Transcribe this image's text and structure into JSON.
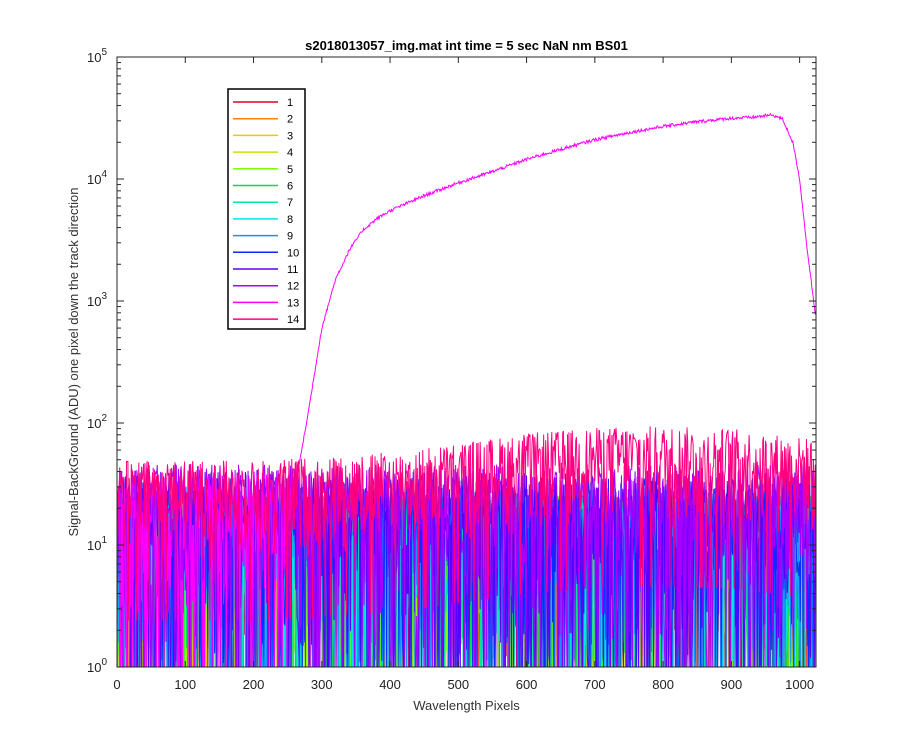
{
  "chart_data": {
    "type": "line",
    "title": "s2018013057_img.mat int time = 5 sec  NaN nm BS01",
    "xlabel": "Wavelength Pixels",
    "ylabel": "Signal-BackGround (ADU) one pixel down the track direction",
    "xlim": [
      0,
      1024
    ],
    "ylim": [
      1,
      100000
    ],
    "yscale": "log",
    "grid": false,
    "legend_position": "top-left",
    "x_ticks": [
      "0",
      "100",
      "200",
      "300",
      "400",
      "500",
      "600",
      "700",
      "800",
      "900",
      "1000"
    ],
    "y_ticks": [
      {
        "base": "10",
        "exp": "0"
      },
      {
        "base": "10",
        "exp": "1"
      },
      {
        "base": "10",
        "exp": "2"
      },
      {
        "base": "10",
        "exp": "3"
      },
      {
        "base": "10",
        "exp": "4"
      },
      {
        "base": "10",
        "exp": "5"
      }
    ],
    "series": [
      {
        "name": "1",
        "color": "#e8001a",
        "baseline": 10
      },
      {
        "name": "2",
        "color": "#ff7f0e",
        "baseline": 10
      },
      {
        "name": "3",
        "color": "#f5c400",
        "baseline": 10
      },
      {
        "name": "4",
        "color": "#c8e000",
        "baseline": 10
      },
      {
        "name": "5",
        "color": "#7cff00",
        "baseline": 10
      },
      {
        "name": "6",
        "color": "#00e040",
        "baseline": 10
      },
      {
        "name": "7",
        "color": "#00e8a0",
        "baseline": 10
      },
      {
        "name": "8",
        "color": "#00e8e8",
        "baseline": 10
      },
      {
        "name": "9",
        "color": "#1a90ff",
        "baseline": 12
      },
      {
        "name": "10",
        "color": "#0a2cff",
        "baseline": 14
      },
      {
        "name": "11",
        "color": "#5a00ff",
        "baseline": 16
      },
      {
        "name": "12",
        "color": "#a800ff",
        "baseline": 18
      },
      {
        "name": "13",
        "color": "#ff00ff",
        "baseline": 20,
        "profile": [
          [
            0,
            20
          ],
          [
            250,
            25
          ],
          [
            265,
            40
          ],
          [
            280,
            120
          ],
          [
            300,
            600
          ],
          [
            320,
            1500
          ],
          [
            340,
            2600
          ],
          [
            360,
            3800
          ],
          [
            380,
            4700
          ],
          [
            400,
            5500
          ],
          [
            450,
            7300
          ],
          [
            500,
            9300
          ],
          [
            550,
            11500
          ],
          [
            600,
            14500
          ],
          [
            650,
            17500
          ],
          [
            700,
            21000
          ],
          [
            750,
            24000
          ],
          [
            800,
            27000
          ],
          [
            850,
            29500
          ],
          [
            900,
            31500
          ],
          [
            930,
            32000
          ],
          [
            960,
            33500
          ],
          [
            975,
            31000
          ],
          [
            990,
            20000
          ],
          [
            1000,
            10000
          ],
          [
            1010,
            3000
          ],
          [
            1024,
            700
          ]
        ]
      },
      {
        "name": "14",
        "color": "#ff0080",
        "baseline": 30,
        "profile": [
          [
            0,
            30
          ],
          [
            200,
            30
          ],
          [
            400,
            35
          ],
          [
            600,
            50
          ],
          [
            750,
            58
          ],
          [
            900,
            55
          ],
          [
            1024,
            45
          ]
        ]
      }
    ]
  }
}
